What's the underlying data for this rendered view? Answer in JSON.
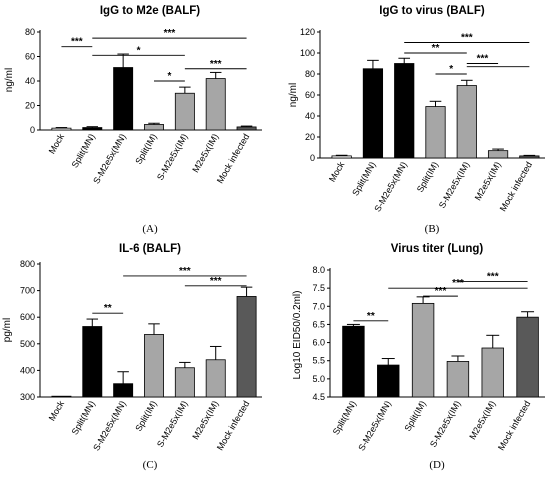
{
  "chart_data": [
    {
      "type": "bar",
      "panel_label": "(A)",
      "title": "IgG to M2e (BALF)",
      "ylabel": "ng/ml",
      "ylim": [
        0,
        80
      ],
      "yticks": [
        0,
        20,
        40,
        60,
        80
      ],
      "categories": [
        "Mock",
        "Split(MN)",
        "S-M2e5x(MN)",
        "Split(IM)",
        "S-M2e5x(IM)",
        "M2e5x(IM)",
        "Mock infected"
      ],
      "values": [
        1.5,
        2,
        51,
        4.5,
        30,
        42,
        2.5
      ],
      "errors": [
        0.5,
        0.7,
        11,
        1,
        5,
        5,
        0.7
      ],
      "colors": [
        "#ffffff",
        "#000000",
        "#000000",
        "#a6a6a6",
        "#a6a6a6",
        "#a6a6a6",
        "#595959"
      ],
      "significance": [
        {
          "from": 1,
          "to": 2,
          "y": 68,
          "label": "***"
        },
        {
          "from": 2,
          "to": 7,
          "y": 75,
          "label": "***"
        },
        {
          "from": 2,
          "to": 5,
          "y": 61,
          "label": "*"
        },
        {
          "from": 4,
          "to": 5,
          "y": 40,
          "label": "*"
        },
        {
          "from": 5,
          "to": 7,
          "y": 50,
          "label": "***"
        }
      ]
    },
    {
      "type": "bar",
      "panel_label": "(B)",
      "title": "IgG to virus (BALF)",
      "ylabel": "ng/ml",
      "ylim": [
        0,
        120
      ],
      "yticks": [
        0,
        20,
        40,
        60,
        80,
        100,
        120
      ],
      "categories": [
        "Mock",
        "Split(MN)",
        "S-M2e5x(MN)",
        "Split(IM)",
        "S-M2e5x(IM)",
        "M2e5x(IM)",
        "Mock infected"
      ],
      "values": [
        2,
        85,
        90,
        49,
        69,
        7,
        2
      ],
      "errors": [
        0.6,
        8,
        5,
        5,
        5,
        1.5,
        0.5
      ],
      "colors": [
        "#ffffff",
        "#000000",
        "#000000",
        "#a6a6a6",
        "#a6a6a6",
        "#a6a6a6",
        "#595959"
      ],
      "significance": [
        {
          "from": 3,
          "to": 7,
          "y": 110,
          "label": "***"
        },
        {
          "from": 3,
          "to": 5,
          "y": 100,
          "label": "**"
        },
        {
          "from": 4,
          "to": 5,
          "y": 80,
          "label": "*"
        },
        {
          "from": 5,
          "to": 6,
          "y": 90,
          "label": "***"
        },
        {
          "from": 5,
          "to": 7,
          "y": 87,
          "label": ""
        }
      ]
    },
    {
      "type": "bar",
      "panel_label": "(C)",
      "title": "IL-6 (BALF)",
      "ylabel": "pg/ml",
      "ylim": [
        300,
        800
      ],
      "yticks": [
        300,
        400,
        500,
        600,
        700,
        800
      ],
      "categories": [
        "Mock",
        "Split(MN)",
        "S-M2e5x(MN)",
        "Split(IM)",
        "S-M2e5x(IM)",
        "M2e5x(IM)",
        "Mock infected"
      ],
      "values": [
        300,
        565,
        350,
        535,
        410,
        440,
        678
      ],
      "errors": [
        0,
        28,
        45,
        40,
        20,
        50,
        35
      ],
      "colors": [
        "#ffffff",
        "#000000",
        "#000000",
        "#a6a6a6",
        "#a6a6a6",
        "#a6a6a6",
        "#595959"
      ],
      "significance": [
        {
          "from": 2,
          "to": 3,
          "y": 615,
          "label": "**"
        },
        {
          "from": 3,
          "to": 7,
          "y": 755,
          "label": "***"
        },
        {
          "from": 5,
          "to": 7,
          "y": 718,
          "label": "***"
        }
      ]
    },
    {
      "type": "bar",
      "panel_label": "(D)",
      "title": "Virus titer (Lung)",
      "ylabel": "Log10 EID50/0.2ml)",
      "ylim": [
        4.5,
        8.0
      ],
      "yticks": [
        4.5,
        5.0,
        5.5,
        6.0,
        6.5,
        7.0,
        7.5,
        8.0
      ],
      "categories": [
        "Split(MN)",
        "S-M2e5x(MN)",
        "Split(IM)",
        "S-M2e5x(IM)",
        "M2e5x(IM)",
        "Mock infected"
      ],
      "values": [
        6.45,
        5.38,
        7.08,
        5.48,
        5.85,
        6.7
      ],
      "errors": [
        0.05,
        0.18,
        0.18,
        0.15,
        0.35,
        0.15
      ],
      "colors": [
        "#000000",
        "#000000",
        "#a6a6a6",
        "#a6a6a6",
        "#a6a6a6",
        "#595959"
      ],
      "significance": [
        {
          "from": 1,
          "to": 2,
          "y": 6.6,
          "label": "**"
        },
        {
          "from": 2,
          "to": 6,
          "y": 7.5,
          "label": "***"
        },
        {
          "from": 3,
          "to": 4,
          "y": 7.28,
          "label": "***"
        },
        {
          "from": 4,
          "to": 6,
          "y": 7.68,
          "label": "***"
        }
      ]
    }
  ]
}
